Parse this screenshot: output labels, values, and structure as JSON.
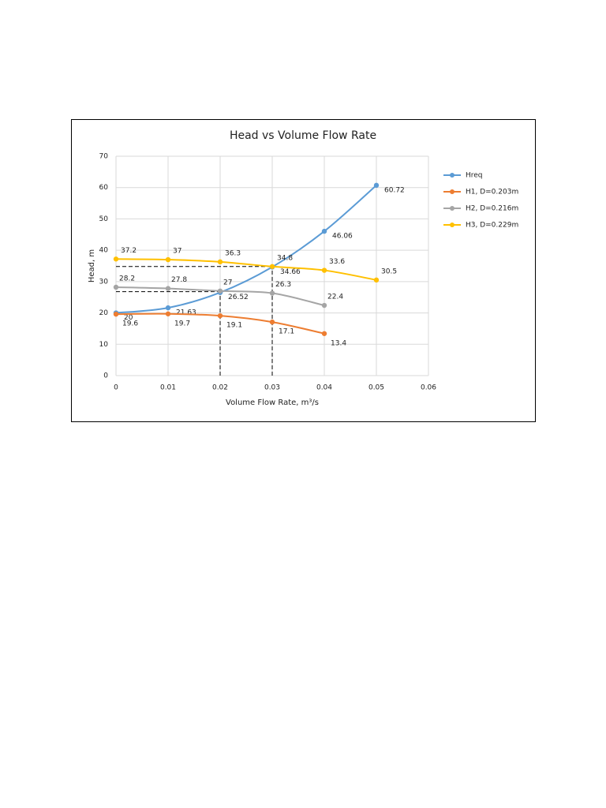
{
  "chart_data": {
    "type": "line",
    "title": "Head vs Volume Flow Rate",
    "x_label": "Volume Flow Rate, m³/s",
    "y_label": "Head, m",
    "x": [
      0,
      0.01,
      0.02,
      0.03,
      0.04,
      0.05
    ],
    "series": [
      {
        "name": "Hreq",
        "color": "#5b9bd5",
        "values": [
          20,
          21.63,
          26.52,
          34.66,
          46.06,
          60.72
        ]
      },
      {
        "name": "H1, D=0.203m",
        "color": "#ed7d31",
        "values": [
          19.6,
          19.7,
          19.1,
          17.1,
          13.4,
          null
        ]
      },
      {
        "name": "H2, D=0.216m",
        "color": "#a5a5a5",
        "values": [
          28.2,
          27.8,
          27,
          26.3,
          22.4,
          null
        ]
      },
      {
        "name": "H3, D=0.229m",
        "color": "#ffc000",
        "values": [
          37.2,
          37,
          36.3,
          34.8,
          33.6,
          30.5
        ]
      }
    ],
    "xlim": [
      0,
      0.06
    ],
    "xticks": [
      0,
      0.01,
      0.02,
      0.03,
      0.04,
      0.05,
      0.06
    ],
    "ylim": [
      0,
      70
    ],
    "yticks": [
      0,
      10,
      20,
      30,
      40,
      50,
      60,
      70
    ],
    "grid": true,
    "legend": "right",
    "guides": {
      "x": [
        0.02,
        0.03
      ],
      "y": [
        26.8,
        34.8
      ]
    }
  }
}
